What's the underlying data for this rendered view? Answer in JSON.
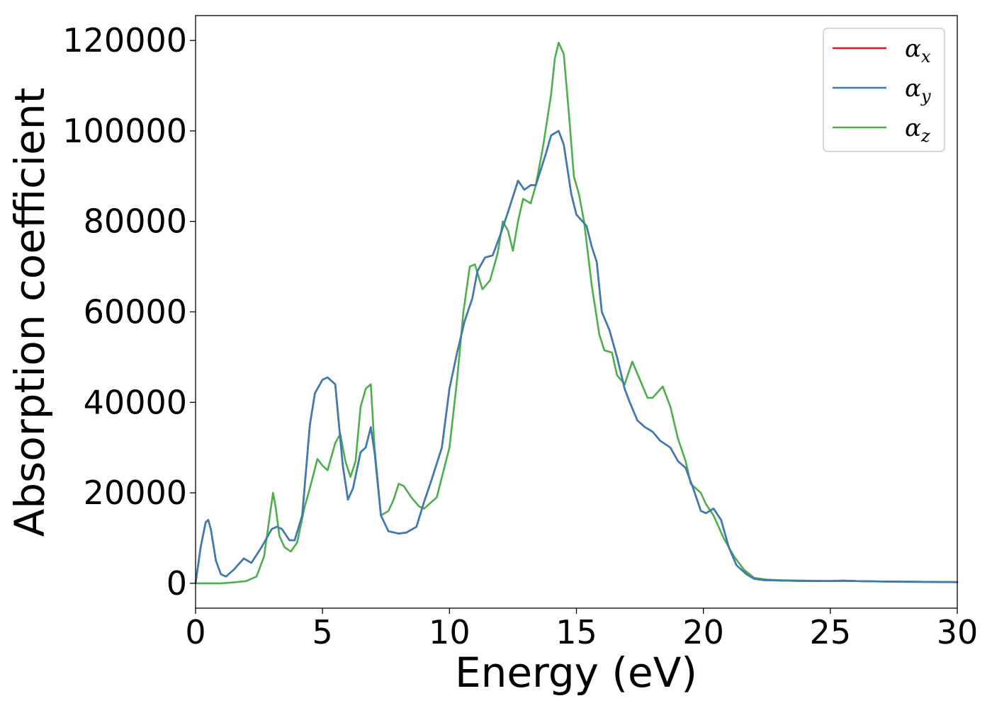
{
  "chart_data": {
    "type": "line",
    "title": "",
    "xlabel": "Energy (eV)",
    "ylabel": "Absorption coefficient",
    "xlim": [
      0,
      30
    ],
    "ylim": [
      -5500,
      125500
    ],
    "grid": false,
    "legend_position": "top-right",
    "x_ticks": [
      "0",
      "5",
      "10",
      "15",
      "20",
      "25",
      "30"
    ],
    "x_tick_values": [
      0,
      5,
      10,
      15,
      20,
      25,
      30
    ],
    "y_ticks": [
      "0",
      "20000",
      "40000",
      "60000",
      "80000",
      "100000",
      "120000"
    ],
    "y_tick_values": [
      0,
      20000,
      40000,
      60000,
      80000,
      100000,
      120000
    ],
    "series": [
      {
        "name": "α_x",
        "symbol": "α",
        "subscript": "x",
        "color": "#e41a1c",
        "x": [
          0,
          0.2,
          0.4,
          0.5,
          0.6,
          0.8,
          1.0,
          1.2,
          1.5,
          1.9,
          2.2,
          2.6,
          3.0,
          3.2,
          3.4,
          3.7,
          3.9,
          4.2,
          4.5,
          4.7,
          5.0,
          5.2,
          5.5,
          5.8,
          6.0,
          6.2,
          6.5,
          6.7,
          6.9,
          7.05,
          7.3,
          7.6,
          8.0,
          8.3,
          8.7,
          9.0,
          9.3,
          9.7,
          10.0,
          10.3,
          10.6,
          10.9,
          11.1,
          11.4,
          11.7,
          12.0,
          12.3,
          12.7,
          12.95,
          13.2,
          13.4,
          13.8,
          14.0,
          14.3,
          14.5,
          14.8,
          15.0,
          15.4,
          15.6,
          15.8,
          16.0,
          16.3,
          16.6,
          16.9,
          17.1,
          17.4,
          17.7,
          18.0,
          18.3,
          18.7,
          19.0,
          19.3,
          19.6,
          19.9,
          20.1,
          20.4,
          20.7,
          21.0,
          21.3,
          21.7,
          22.0,
          22.4,
          23.0,
          24.0,
          25.0,
          25.5,
          26.0,
          27.0,
          28.0,
          29.0,
          30.0
        ],
        "y": [
          0,
          8000,
          13500,
          14000,
          12000,
          5000,
          2000,
          1500,
          3000,
          5500,
          4500,
          8000,
          12000,
          12500,
          12000,
          9500,
          9500,
          15000,
          35000,
          42000,
          45000,
          45500,
          44000,
          26000,
          18500,
          21000,
          29000,
          30000,
          34500,
          29000,
          15000,
          11500,
          11000,
          11200,
          12500,
          18000,
          23000,
          30000,
          43000,
          51000,
          58000,
          63000,
          69000,
          72000,
          72500,
          77000,
          82000,
          89000,
          87000,
          88000,
          88000,
          95000,
          99000,
          100000,
          97000,
          86000,
          81500,
          79000,
          74500,
          71000,
          60000,
          56000,
          50000,
          43000,
          40000,
          36000,
          34500,
          33500,
          31500,
          30000,
          27000,
          25500,
          21000,
          16000,
          15500,
          16500,
          14000,
          8000,
          4000,
          2000,
          1000,
          700,
          600,
          500,
          500,
          600,
          500,
          400,
          350,
          300,
          250
        ]
      },
      {
        "name": "α_y",
        "symbol": "α",
        "subscript": "y",
        "color": "#377eb8",
        "x": [
          0,
          0.2,
          0.4,
          0.5,
          0.6,
          0.8,
          1.0,
          1.2,
          1.5,
          1.9,
          2.2,
          2.6,
          3.0,
          3.2,
          3.4,
          3.7,
          3.9,
          4.2,
          4.5,
          4.7,
          5.0,
          5.2,
          5.5,
          5.8,
          6.0,
          6.2,
          6.5,
          6.7,
          6.9,
          7.05,
          7.3,
          7.6,
          8.0,
          8.3,
          8.7,
          9.0,
          9.3,
          9.7,
          10.0,
          10.3,
          10.6,
          10.9,
          11.1,
          11.4,
          11.7,
          12.0,
          12.3,
          12.7,
          12.95,
          13.2,
          13.4,
          13.8,
          14.0,
          14.3,
          14.5,
          14.8,
          15.0,
          15.4,
          15.6,
          15.8,
          16.0,
          16.3,
          16.6,
          16.9,
          17.1,
          17.4,
          17.7,
          18.0,
          18.3,
          18.7,
          19.0,
          19.3,
          19.6,
          19.9,
          20.1,
          20.4,
          20.7,
          21.0,
          21.3,
          21.7,
          22.0,
          22.4,
          23.0,
          24.0,
          25.0,
          25.5,
          26.0,
          27.0,
          28.0,
          29.0,
          30.0
        ],
        "y": [
          0,
          8000,
          13500,
          14000,
          12000,
          5000,
          2000,
          1500,
          3000,
          5500,
          4500,
          8000,
          12000,
          12500,
          12000,
          9500,
          9500,
          15000,
          35000,
          42000,
          45000,
          45500,
          44000,
          26000,
          18500,
          21000,
          29000,
          30000,
          34500,
          29000,
          15000,
          11500,
          11000,
          11200,
          12500,
          18000,
          23000,
          30000,
          43000,
          51000,
          58000,
          63000,
          69000,
          72000,
          72500,
          77000,
          82000,
          89000,
          87000,
          88000,
          88000,
          95000,
          99000,
          100000,
          97000,
          86000,
          81500,
          79000,
          74500,
          71000,
          60000,
          56000,
          50000,
          43000,
          40000,
          36000,
          34500,
          33500,
          31500,
          30000,
          27000,
          25500,
          21000,
          16000,
          15500,
          16500,
          14000,
          8000,
          4000,
          2000,
          1000,
          700,
          600,
          500,
          500,
          600,
          500,
          400,
          350,
          300,
          250
        ]
      },
      {
        "name": "α_z",
        "symbol": "α",
        "subscript": "z",
        "color": "#4daf4a",
        "x": [
          0,
          0.5,
          1.0,
          1.5,
          2.0,
          2.4,
          2.7,
          2.9,
          3.05,
          3.15,
          3.3,
          3.5,
          3.75,
          4.0,
          4.3,
          4.5,
          4.8,
          5.0,
          5.2,
          5.5,
          5.7,
          5.9,
          6.1,
          6.3,
          6.5,
          6.7,
          6.9,
          7.05,
          7.3,
          7.6,
          7.8,
          8.0,
          8.2,
          8.5,
          8.8,
          9.0,
          9.5,
          10.0,
          10.3,
          10.55,
          10.8,
          11.0,
          11.3,
          11.6,
          11.9,
          12.1,
          12.3,
          12.5,
          12.7,
          12.9,
          13.2,
          13.4,
          13.7,
          14.0,
          14.15,
          14.3,
          14.5,
          14.7,
          14.9,
          15.1,
          15.3,
          15.6,
          15.9,
          16.1,
          16.4,
          16.6,
          16.9,
          17.2,
          17.5,
          17.8,
          18.0,
          18.4,
          18.7,
          19.0,
          19.3,
          19.5,
          19.9,
          20.1,
          20.4,
          20.8,
          21.2,
          21.6,
          22.0,
          22.5,
          23.0,
          24.0,
          25.0,
          25.5,
          26.0,
          27.0,
          28.0,
          29.0,
          30.0
        ],
        "y": [
          0,
          0,
          0,
          200,
          500,
          1500,
          6000,
          14000,
          20000,
          17000,
          10500,
          8000,
          7000,
          9000,
          17000,
          21000,
          27500,
          26000,
          25000,
          31000,
          33000,
          27000,
          23500,
          27000,
          39000,
          43000,
          44000,
          30000,
          15000,
          16000,
          18500,
          22000,
          21500,
          19000,
          17000,
          16500,
          19000,
          30000,
          45000,
          60000,
          70000,
          70500,
          65000,
          67000,
          73000,
          80000,
          78000,
          73500,
          80000,
          85000,
          84000,
          88000,
          97000,
          108000,
          116000,
          119500,
          117000,
          104000,
          90000,
          86000,
          80000,
          66000,
          55000,
          51500,
          51000,
          46000,
          44000,
          49000,
          45000,
          41000,
          41000,
          43500,
          39000,
          32000,
          27000,
          22000,
          20000,
          17500,
          15000,
          10000,
          6000,
          3000,
          1200,
          800,
          700,
          600,
          500,
          500,
          500,
          400,
          300,
          300,
          300
        ]
      }
    ]
  }
}
